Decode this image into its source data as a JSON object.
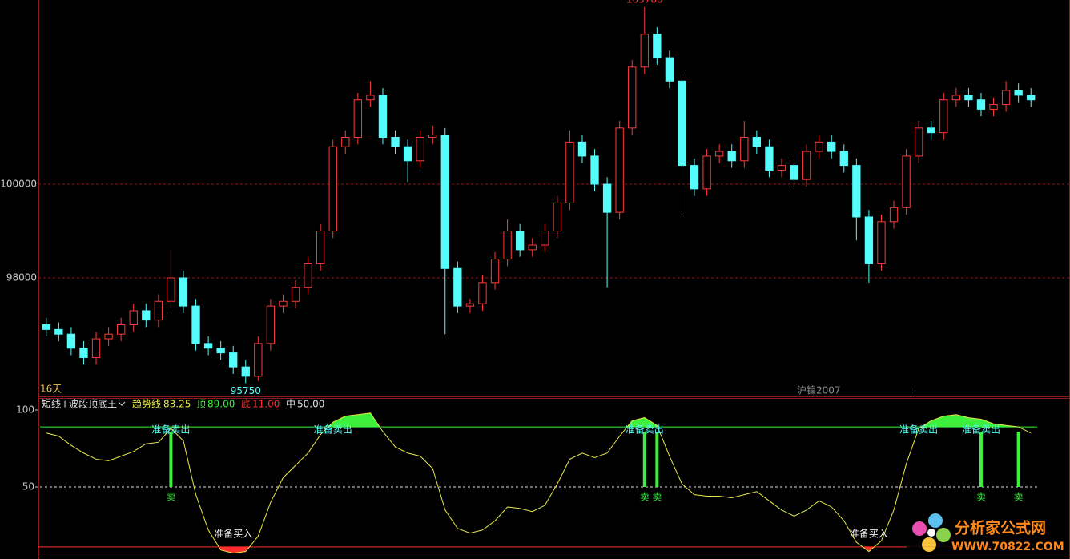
{
  "chart_data": [
    {
      "type": "candlestick",
      "up_color": "#ff3a3a",
      "down_color": "#54fcfc",
      "grid_color": "#8a1c1c",
      "ylim": [
        95470,
        103932
      ],
      "yticks": [
        98000,
        100000
      ],
      "period_label": "16天",
      "symbol": "沪镍2007",
      "max_index": 48,
      "min_index": 16,
      "series": [
        {
          "open": [
            97000,
            96900,
            96800,
            96500,
            96300,
            96700,
            96800,
            97000,
            97300,
            97100,
            97500,
            98000,
            97400,
            96600,
            96500,
            96400,
            96100,
            95900,
            96600,
            97400,
            97500,
            97800,
            98300,
            99000,
            100800,
            101000,
            101800,
            101900,
            101000,
            100800,
            100500,
            101000,
            101050,
            98200,
            97400,
            97450,
            97900,
            98400,
            99000,
            98600,
            98700,
            99000,
            99600,
            100900,
            100600,
            100000,
            99400,
            101200,
            102500,
            103200,
            102700,
            102200,
            100400,
            99900,
            100600,
            100700,
            100500,
            101000,
            100800,
            100300,
            100400,
            100100,
            100700,
            100900,
            100700,
            100400,
            99300,
            98300,
            99200,
            99500,
            100600,
            101200,
            101100,
            101800,
            101900,
            101800,
            101600,
            101700,
            102000,
            101900
          ],
          "high": [
            97150,
            97050,
            96950,
            96650,
            96850,
            96950,
            97150,
            97450,
            97450,
            97650,
            98600,
            98150,
            97550,
            96750,
            96650,
            96550,
            96250,
            96750,
            97550,
            97650,
            97950,
            98450,
            99150,
            100950,
            101150,
            101950,
            102200,
            102050,
            101150,
            100950,
            101150,
            101250,
            101200,
            98350,
            97550,
            98050,
            98550,
            99250,
            99150,
            98850,
            99150,
            99750,
            101150,
            101050,
            100750,
            100150,
            101350,
            102650,
            103780,
            103350,
            102850,
            102350,
            100550,
            100750,
            100850,
            100850,
            101350,
            101150,
            100950,
            100550,
            100550,
            100850,
            101050,
            101050,
            100850,
            100550,
            99450,
            99350,
            99650,
            100750,
            101350,
            101350,
            101950,
            102050,
            102050,
            101950,
            101850,
            102200,
            102150,
            102050
          ],
          "low": [
            96750,
            96650,
            96350,
            96150,
            96150,
            96550,
            96650,
            96850,
            96950,
            96950,
            97350,
            97250,
            96450,
            96350,
            96250,
            95950,
            95750,
            95800,
            96450,
            97250,
            97350,
            97650,
            98150,
            98850,
            100650,
            100850,
            101650,
            100850,
            100650,
            100050,
            100350,
            100850,
            96800,
            97250,
            97250,
            97300,
            97750,
            98250,
            98450,
            98450,
            98550,
            98850,
            99450,
            100450,
            99850,
            97800,
            99250,
            101050,
            102350,
            102550,
            102050,
            99300,
            99750,
            99750,
            100450,
            100350,
            100350,
            100650,
            100150,
            100150,
            99950,
            99950,
            100550,
            100550,
            100250,
            98800,
            97900,
            98150,
            99050,
            99350,
            100450,
            100950,
            100950,
            101650,
            101650,
            101450,
            101450,
            101550,
            101750,
            101650
          ],
          "close": [
            96900,
            96800,
            96500,
            96300,
            96700,
            96800,
            97000,
            97300,
            97100,
            97500,
            98000,
            97400,
            96600,
            96500,
            96400,
            96100,
            95900,
            96600,
            97400,
            97500,
            97800,
            98300,
            99000,
            100800,
            101000,
            101800,
            101900,
            101000,
            100800,
            100500,
            101000,
            101050,
            98200,
            97400,
            97450,
            97900,
            98400,
            99000,
            98600,
            98700,
            99000,
            99600,
            100900,
            100600,
            100000,
            99400,
            101200,
            102500,
            103200,
            102700,
            102200,
            100400,
            99900,
            100600,
            100700,
            100500,
            101000,
            100800,
            100300,
            100400,
            100100,
            100700,
            100900,
            100700,
            100400,
            99300,
            98300,
            99200,
            99500,
            100600,
            101200,
            101100,
            101800,
            101900,
            101800,
            101600,
            101700,
            102000,
            101900,
            101800
          ]
        }
      ]
    },
    {
      "type": "line",
      "title": "短线+波段顶底王",
      "series_name": "趋势线",
      "trend_value": 83.25,
      "color": "#e8e84a",
      "ylim": [
        4.7,
        107.8
      ],
      "yticks": [
        50,
        100
      ],
      "levels": [
        {
          "name": "顶",
          "value": 89,
          "value_label": "89.00",
          "color": "#3cf03c"
        },
        {
          "name": "底",
          "value": 11,
          "value_label": "11.00",
          "color": "#ff2e2e"
        },
        {
          "name": "中",
          "value": 50,
          "value_label": "50.00",
          "color": "#e0e0e0"
        }
      ],
      "values": [
        85,
        83,
        77,
        72,
        68,
        67,
        70,
        73,
        78,
        79,
        88,
        80,
        45,
        22,
        9,
        7,
        8,
        18,
        40,
        56,
        64,
        72,
        84,
        92,
        96,
        97,
        98,
        86,
        76,
        72,
        70,
        62,
        35,
        23,
        20,
        22,
        28,
        37,
        36,
        34,
        38,
        52,
        68,
        72,
        69,
        72,
        83,
        93,
        95,
        90,
        70,
        52,
        45,
        44,
        44,
        43,
        45,
        47,
        41,
        35,
        31,
        35,
        41,
        37,
        28,
        14,
        8,
        15,
        35,
        65,
        88,
        93,
        96,
        97,
        95,
        94,
        91,
        90,
        89,
        85
      ],
      "annotations": [
        {
          "text": "准备卖出",
          "index": 10
        },
        {
          "text": "准备卖出",
          "index": 23
        },
        {
          "text": "准备卖出",
          "index": 48
        },
        {
          "text": "准备卖出",
          "index": 70
        },
        {
          "text": "准备卖出",
          "index": 75
        },
        {
          "text": "准备买入",
          "index": 15
        },
        {
          "text": "准备买入",
          "index": 66
        }
      ],
      "signals": [
        {
          "text": "卖",
          "index": 10
        },
        {
          "text": "卖",
          "index": 48
        },
        {
          "text": "卖",
          "index": 49
        },
        {
          "text": "卖",
          "index": 75
        },
        {
          "text": "卖",
          "index": 78
        }
      ]
    }
  ],
  "watermark": {
    "name": "分析家公式网",
    "url": "WWW.70822.COM"
  }
}
